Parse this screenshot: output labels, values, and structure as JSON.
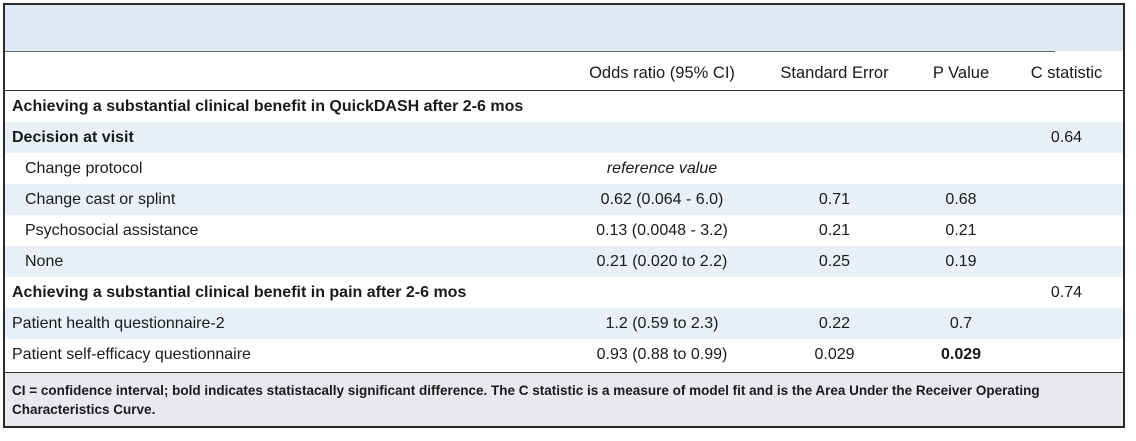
{
  "columns": [
    "",
    "Odds ratio (95% CI)",
    "Standard Error",
    "P Value",
    "C statistic"
  ],
  "rows": [
    {
      "kind": "section",
      "band": false,
      "label": "Achieving a substantial clinical benefit in QuickDASH after 2-6 mos",
      "or": "",
      "se": "",
      "p": "",
      "c": "",
      "p_bold": false
    },
    {
      "kind": "section",
      "band": true,
      "label": "Decision at visit",
      "or": "",
      "se": "",
      "p": "",
      "c": "0.64",
      "p_bold": false
    },
    {
      "kind": "sub",
      "band": false,
      "label": "Change protocol",
      "or": "reference value",
      "or_italic": true,
      "se": "",
      "p": "",
      "c": "",
      "p_bold": false
    },
    {
      "kind": "sub",
      "band": true,
      "label": "Change cast or splint",
      "or": "0.62 (0.064 - 6.0)",
      "se": "0.71",
      "p": "0.68",
      "c": "",
      "p_bold": false
    },
    {
      "kind": "sub",
      "band": false,
      "label": "Psychosocial assistance",
      "or": "0.13 (0.0048 - 3.2)",
      "se": "0.21",
      "p": "0.21",
      "c": "",
      "p_bold": false
    },
    {
      "kind": "sub",
      "band": true,
      "label": "None",
      "or": "0.21 (0.020 to 2.2)",
      "se": "0.25",
      "p": "0.19",
      "c": "",
      "p_bold": false
    },
    {
      "kind": "section",
      "band": false,
      "label": "Achieving a substantial clinical benefit in pain after 2-6 mos",
      "or": "",
      "se": "",
      "p": "",
      "c": "0.74",
      "p_bold": false
    },
    {
      "kind": "plain",
      "band": true,
      "label": "Patient health questionnaire-2",
      "or": "1.2 (0.59 to 2.3)",
      "se": "0.22",
      "p": "0.7",
      "c": "",
      "p_bold": false
    },
    {
      "kind": "plain",
      "band": false,
      "label": "Patient self-efficacy questionnaire",
      "or": "0.93 (0.88 to 0.99)",
      "se": "0.029",
      "p": "0.029",
      "c": "",
      "p_bold": true
    }
  ],
  "footnote": "CI = confidence interval; bold indicates statistacally significant difference. The C statistic is a measure of model fit and is the Area Under the Receiver Operating Characteristics Curve."
}
